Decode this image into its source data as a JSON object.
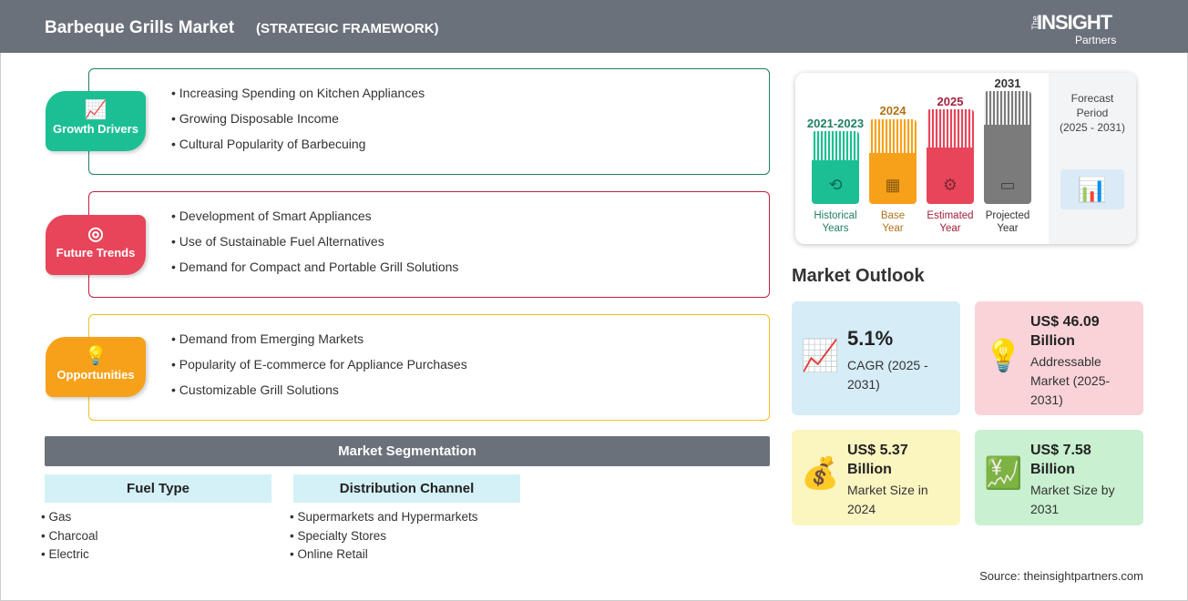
{
  "header": {
    "title": "Barbeque Grills Market",
    "subtitle": "(STRATEGIC FRAMEWORK)",
    "logo": {
      "the": "The",
      "insight": "INSIGHT",
      "partners": "Partners"
    }
  },
  "sections": [
    {
      "label": "Growth Drivers",
      "icon": "chart-growth-icon",
      "color": "#1bbf93",
      "items": [
        "Increasing Spending on Kitchen Appliances",
        "Growing Disposable Income",
        "Cultural Popularity of Barbecuing"
      ]
    },
    {
      "label": "Future Trends",
      "icon": "target-icon",
      "color": "#e8455a",
      "items": [
        "Development of Smart Appliances",
        "Use of Sustainable Fuel Alternatives",
        "Demand for Compact and Portable Grill Solutions"
      ]
    },
    {
      "label": "Opportunities",
      "icon": "lightbulb-hand-icon",
      "color": "#f7a11a",
      "items": [
        "Demand from Emerging Markets",
        "Popularity of E-commerce for Appliance Purchases",
        "Customizable Grill Solutions"
      ]
    }
  ],
  "segmentation": {
    "title": "Market Segmentation",
    "columns": [
      {
        "header": "Fuel Type",
        "items": [
          "Gas",
          "Charcoal",
          "Electric"
        ]
      },
      {
        "header": "Distribution Channel",
        "items": [
          "Supermarkets and Hypermarkets",
          "Specialty Stores",
          "Online Retail"
        ]
      }
    ]
  },
  "timeline": {
    "bars": [
      {
        "year": "2021-2023",
        "label1": "Historical",
        "label2": "Years",
        "color": "#1bbf93",
        "text": "#1e7e64"
      },
      {
        "year": "2024",
        "label1": "Base",
        "label2": "Year",
        "color": "#f7a11a",
        "text": "#b0721a"
      },
      {
        "year": "2025",
        "label1": "Estimated",
        "label2": "Year",
        "color": "#e8455a",
        "text": "#a3203a"
      },
      {
        "year": "2031",
        "label1": "Projected",
        "label2": "Year",
        "color": "#7b7b7b",
        "text": "#333333"
      }
    ],
    "forecast": {
      "l1": "Forecast",
      "l2": "Period",
      "l3": "(2025 - 2031)"
    }
  },
  "outlook": {
    "title": "Market Outlook",
    "tiles": [
      {
        "value": "5.1%",
        "desc": "CAGR (2025 - 2031)",
        "color": "#d6ecf7"
      },
      {
        "value": "US$ 46.09 Billion",
        "desc": "Addressable Market (2025-2031)",
        "color": "#f9d3d8"
      },
      {
        "value": "US$ 5.37 Billion",
        "desc": "Market Size in 2024",
        "color": "#fbf5c0"
      },
      {
        "value": "US$ 7.58 Billion",
        "desc": "Market Size by 2031",
        "color": "#c9f0d0"
      }
    ]
  },
  "source": "Source: theinsightpartners.com"
}
